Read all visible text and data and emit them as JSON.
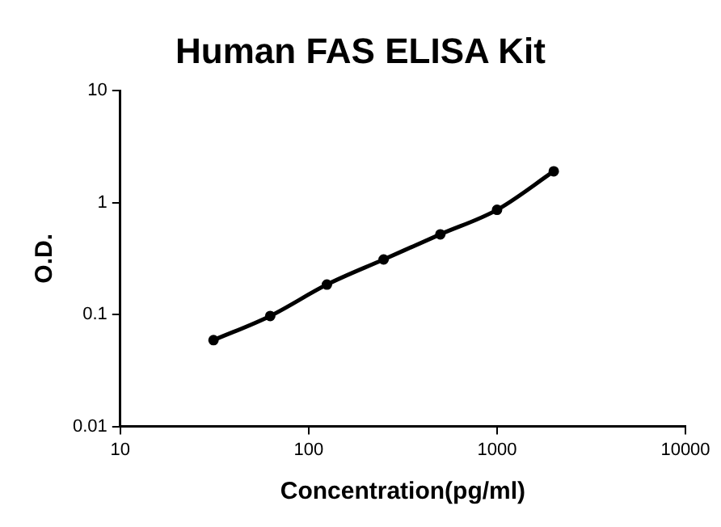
{
  "chart_data": {
    "type": "line",
    "title": "Human FAS ELISA Kit",
    "xlabel": "Concentration(pg/ml)",
    "ylabel": "O.D.",
    "x": [
      31.25,
      62.5,
      125,
      250,
      500,
      1000,
      2000
    ],
    "series": [
      {
        "color": "#000000",
        "values": [
          0.059,
          0.097,
          0.185,
          0.31,
          0.52,
          0.86,
          1.9
        ]
      }
    ],
    "log": "xy",
    "xlim": [
      10,
      10000
    ],
    "ylim": [
      0.01,
      10
    ],
    "xticks": [
      10,
      100,
      1000,
      10000
    ],
    "yticks": [
      0.01,
      0.1,
      1,
      10
    ],
    "grid": false,
    "legend": false,
    "marker": "circle",
    "line_style": "solid"
  }
}
